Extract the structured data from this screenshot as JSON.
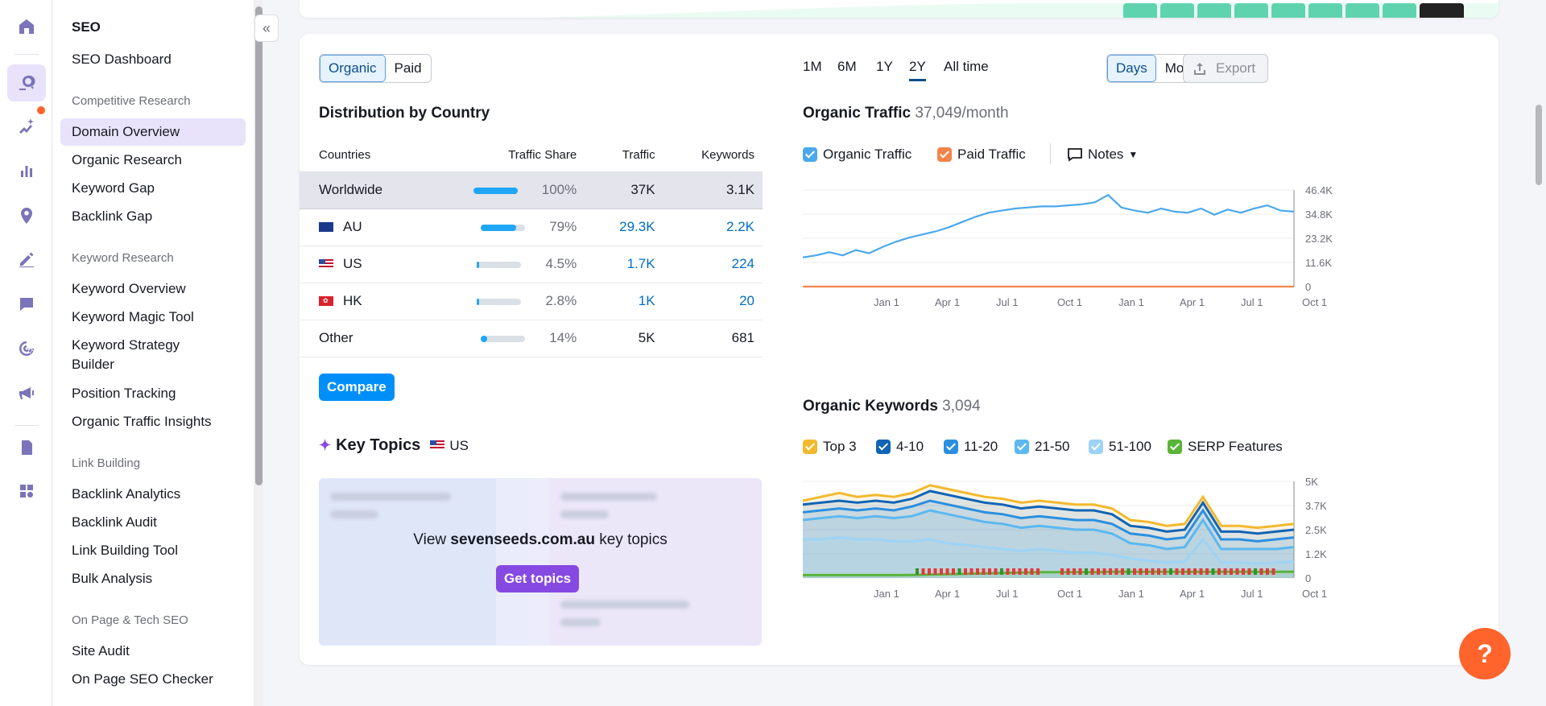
{
  "colors": {
    "accent": "#008ff8",
    "purple": "#8649e1",
    "orange": "#ff642d",
    "organic_line": "#4ba8ec"
  },
  "rail": {
    "icons": [
      "home-icon",
      "seo-icon",
      "ai-sparkle-icon",
      "bar-chart-icon",
      "location-pin-icon",
      "pen-icon",
      "heart-chat-icon",
      "target-cursor-icon",
      "megaphone-icon",
      "report-icon",
      "apps-icon"
    ]
  },
  "nav": {
    "title": "SEO",
    "dashboard": "SEO Dashboard",
    "sections": [
      {
        "label": "Competitive Research",
        "items": [
          "Domain Overview",
          "Organic Research",
          "Keyword Gap",
          "Backlink Gap"
        ]
      },
      {
        "label": "Keyword Research",
        "items": [
          "Keyword Overview",
          "Keyword Magic Tool",
          "Keyword Strategy Builder",
          "Position Tracking",
          "Organic Traffic Insights"
        ]
      },
      {
        "label": "Link Building",
        "items": [
          "Backlink Analytics",
          "Backlink Audit",
          "Link Building Tool",
          "Bulk Analysis"
        ]
      },
      {
        "label": "On Page & Tech SEO",
        "items": [
          "Site Audit",
          "On Page SEO Checker"
        ]
      }
    ],
    "collapse": "«"
  },
  "tabs": {
    "organic": "Organic",
    "paid": "Paid"
  },
  "distribution": {
    "title": "Distribution by Country",
    "headers": [
      "Countries",
      "Traffic Share",
      "Traffic",
      "Keywords"
    ],
    "rows": [
      {
        "country": "Worldwide",
        "share": "100%",
        "share_value": 1.0,
        "traffic": "37K",
        "keywords": "3.1K"
      },
      {
        "country": "AU",
        "share": "79%",
        "share_value": 0.79,
        "traffic": "29.3K",
        "keywords": "2.2K"
      },
      {
        "country": "US",
        "share": "4.5%",
        "share_value": 0.045,
        "traffic": "1.7K",
        "keywords": "224"
      },
      {
        "country": "HK",
        "share": "2.8%",
        "share_value": 0.028,
        "traffic": "1K",
        "keywords": "20"
      },
      {
        "country": "Other",
        "share": "14%",
        "share_value": 0.14,
        "traffic": "5K",
        "keywords": "681"
      }
    ],
    "compare": "Compare"
  },
  "topics": {
    "title": "Key Topics",
    "country": "US",
    "view_prefix": "View",
    "domain": "sevenseeds.com.au",
    "view_suffix": "key topics",
    "button": "Get topics"
  },
  "timeframes": [
    "1M",
    "6M",
    "1Y",
    "2Y",
    "All time"
  ],
  "granularity": {
    "days": "Days",
    "months": "Months"
  },
  "export": "Export",
  "traffic": {
    "title": "Organic Traffic",
    "value": "37,049/month",
    "legend": [
      "Organic Traffic",
      "Paid Traffic"
    ],
    "notes": "Notes"
  },
  "keywords": {
    "title": "Organic Keywords",
    "value": "3,094",
    "legend": [
      "Top 3",
      "4-10",
      "11-20",
      "21-50",
      "51-100",
      "SERP Features"
    ]
  },
  "chart_data": [
    {
      "type": "line",
      "title": "Organic Traffic",
      "x_ticks": [
        "Jan 1",
        "Apr 1",
        "Jul 1",
        "Oct 1",
        "Jan 1",
        "Apr 1",
        "Jul 1",
        "Oct 1"
      ],
      "y_ticks": [
        "46.4K",
        "34.8K",
        "23.2K",
        "11.6K",
        "0"
      ],
      "ylim": [
        0,
        46400
      ],
      "series": [
        {
          "name": "Organic Traffic",
          "color": "#4ba8ec",
          "values": [
            14000,
            15000,
            16500,
            15000,
            17500,
            16000,
            19000,
            21500,
            23500,
            25000,
            26500,
            28500,
            31000,
            33500,
            35500,
            36500,
            37500,
            38000,
            38500,
            38500,
            39000,
            39500,
            40500,
            44000,
            38000,
            36500,
            35500,
            37500,
            36000,
            35500,
            37500,
            34500,
            37000,
            35500,
            37500,
            39000,
            36500,
            36000
          ]
        },
        {
          "name": "Paid Traffic",
          "color": "#f5844a",
          "values": [
            0,
            0,
            0,
            0,
            0,
            0,
            0,
            0,
            0,
            0,
            0,
            0,
            0,
            0,
            0,
            0,
            0,
            0,
            0,
            0,
            0,
            0,
            0,
            0,
            0,
            0,
            0,
            0,
            0,
            0,
            0,
            0,
            0,
            0,
            0,
            0,
            0,
            0
          ]
        }
      ]
    },
    {
      "type": "area",
      "title": "Organic Keywords",
      "x_ticks": [
        "Jan 1",
        "Apr 1",
        "Jul 1",
        "Oct 1",
        "Jan 1",
        "Apr 1",
        "Jul 1",
        "Oct 1"
      ],
      "y_ticks": [
        "5K",
        "3.7K",
        "2.5K",
        "1.2K",
        "0"
      ],
      "ylim": [
        0,
        5000
      ],
      "series": [
        {
          "name": "Top 3",
          "color": "#f2b92e",
          "values": [
            4000,
            4200,
            4400,
            4200,
            4300,
            4200,
            4400,
            4800,
            4600,
            4400,
            4200,
            4100,
            3900,
            4000,
            3900,
            3800,
            3800,
            3600,
            3000,
            2900,
            2700,
            2800,
            4200,
            2700,
            2700,
            2600,
            2700,
            2800
          ]
        },
        {
          "name": "4-10",
          "color": "#1164b5",
          "values": [
            3800,
            3900,
            4000,
            3900,
            4000,
            3900,
            4100,
            4500,
            4300,
            4100,
            3900,
            3800,
            3600,
            3700,
            3600,
            3500,
            3500,
            3300,
            2700,
            2600,
            2400,
            2500,
            3900,
            2400,
            2400,
            2300,
            2400,
            2500
          ]
        },
        {
          "name": "11-20",
          "color": "#2b8fe0",
          "values": [
            3400,
            3500,
            3600,
            3500,
            3600,
            3500,
            3700,
            4000,
            3800,
            3600,
            3400,
            3300,
            3100,
            3200,
            3100,
            3000,
            3000,
            2800,
            2300,
            2200,
            2000,
            2100,
            3500,
            2000,
            2000,
            1900,
            2000,
            2100
          ]
        },
        {
          "name": "21-50",
          "color": "#5cb8f0",
          "values": [
            3000,
            3100,
            3200,
            3100,
            3200,
            3100,
            3200,
            3500,
            3300,
            3100,
            2900,
            2800,
            2600,
            2700,
            2600,
            2500,
            2500,
            2300,
            1800,
            1700,
            1500,
            1600,
            3000,
            1500,
            1500,
            1500,
            1500,
            1600
          ]
        },
        {
          "name": "51-100",
          "color": "#9dd3f5",
          "values": [
            2000,
            2000,
            2100,
            2000,
            2000,
            1900,
            1900,
            2000,
            1800,
            1700,
            1600,
            1500,
            1400,
            1500,
            1400,
            1300,
            1300,
            1200,
            1000,
            900,
            800,
            850,
            2000,
            800,
            800,
            750,
            800,
            850
          ]
        },
        {
          "name": "SERP Features",
          "color": "#59b53a",
          "values": [
            150,
            150,
            150,
            150,
            150,
            150,
            160,
            180,
            200,
            220,
            240,
            260,
            280,
            300,
            300,
            300,
            300,
            320,
            320,
            320,
            320,
            320,
            320,
            320,
            320,
            320,
            320,
            320
          ]
        }
      ]
    }
  ]
}
